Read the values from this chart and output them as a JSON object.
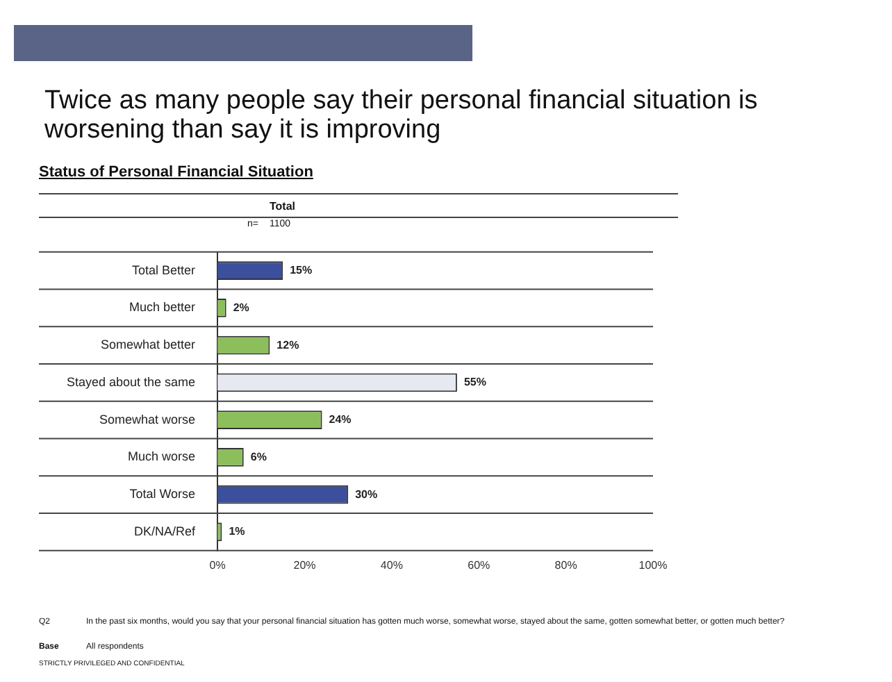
{
  "chart_data": {
    "type": "bar",
    "orientation": "horizontal",
    "title": "Twice as many people say their personal financial situation is worsening than say it is improving",
    "subtitle": "Status of Personal Financial Situation",
    "categories": [
      "Total Better",
      "Much better",
      "Somewhat better",
      "Stayed about the same",
      "Somewhat worse",
      "Much worse",
      "Total Worse",
      "DK/NA/Ref"
    ],
    "values": [
      15,
      2,
      12,
      55,
      24,
      6,
      30,
      1
    ],
    "colors": [
      "#3b4f9c",
      "#8cbf5c",
      "#8cbf5c",
      "#e6e9f2",
      "#8cbf5c",
      "#8cbf5c",
      "#3b4f9c",
      "#8cbf5c"
    ],
    "value_labels": [
      "15%",
      "2%",
      "12%",
      "55%",
      "24%",
      "6%",
      "30%",
      "1%"
    ],
    "xlim": [
      0,
      100
    ],
    "xticks": [
      {
        "value": 0,
        "label": "0%"
      },
      {
        "value": 20,
        "label": "20%"
      },
      {
        "value": 40,
        "label": "40%"
      },
      {
        "value": 60,
        "label": "60%"
      },
      {
        "value": 80,
        "label": "80%"
      },
      {
        "value": 100,
        "label": "100%"
      }
    ],
    "grid": "y",
    "legend": false,
    "annotations": [
      "Total",
      "n=",
      "1100",
      "Q2",
      "In the past six months, would you say that your personal financial situation has gotten much worse, somewhat worse, stayed about the same, gotten somewhat better, or gotten much better?",
      "Base",
      "All respondents",
      "STRICTLY PRIVILEGED AND CONFIDENTIAL"
    ]
  }
}
